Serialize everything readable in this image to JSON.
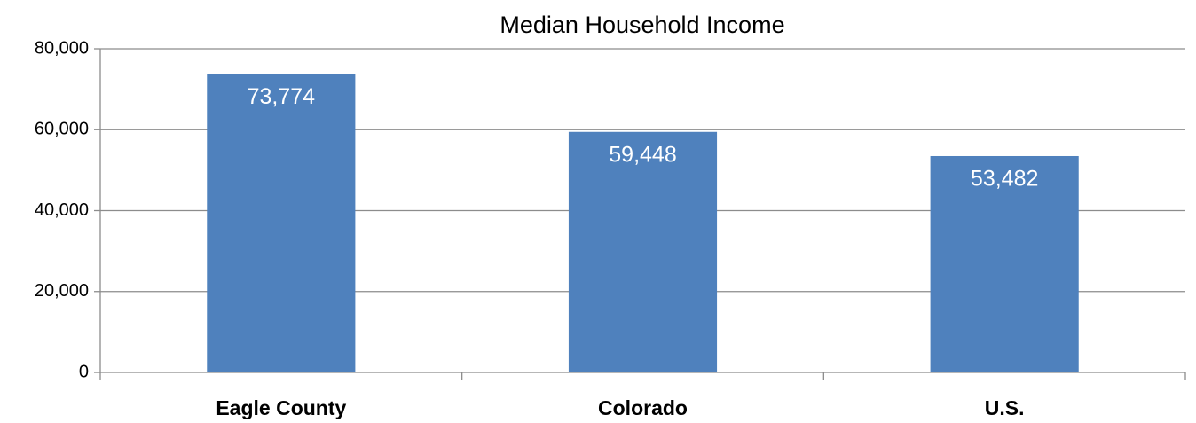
{
  "chart_data": {
    "type": "bar",
    "title": "Median Household Income",
    "categories": [
      "Eagle County",
      "Colorado",
      "U.S."
    ],
    "values": [
      73774,
      59448,
      53482
    ],
    "value_labels": [
      "73,774",
      "59,448",
      "53,482"
    ],
    "color": "#4f81bd",
    "ylim": [
      0,
      80000
    ],
    "yticks": [
      0,
      {
        "value": 20000,
        "label": "20,000"
      },
      {
        "value": 40000,
        "label": "40,000"
      },
      {
        "value": 60000,
        "label": "60,000"
      },
      {
        "value": 80000,
        "label": "80,000"
      }
    ],
    "grid": true
  }
}
